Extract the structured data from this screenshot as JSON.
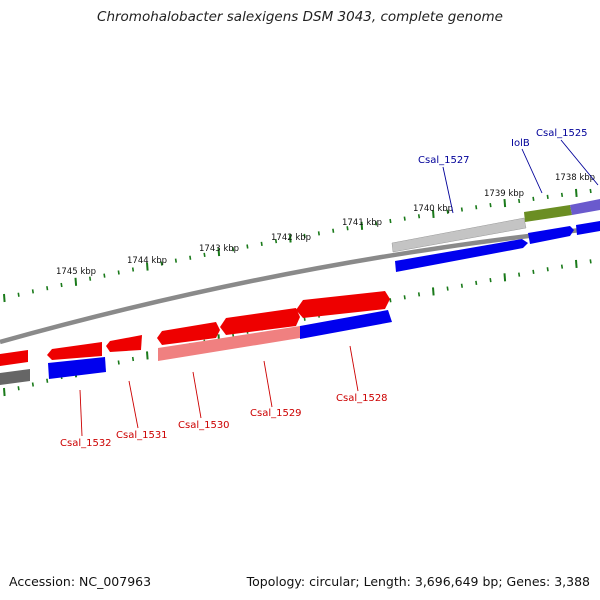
{
  "header": {
    "title": "Chromohalobacter salexigens DSM 3043, complete genome"
  },
  "footer": {
    "accession": "Accession: NC_007963",
    "topology": "Topology: circular; Length: 3,696,649 bp; Genes: 3,388"
  },
  "colors": {
    "forward_cds": "#ff0000",
    "forward_cds_light": "#f08080",
    "reverse_cds": "#0000ee",
    "highlight_green": "#6b8e23",
    "highlight_purple": "#6a5acd",
    "backbone": "#888888",
    "tick": "#1a7a1a",
    "label_red": "#cc0000",
    "label_blue": "#000099"
  },
  "scale_ticks": [
    {
      "text": "1745 kbp"
    },
    {
      "text": "1744 kbp"
    },
    {
      "text": "1743 kbp"
    },
    {
      "text": "1742 kbp"
    },
    {
      "text": "1741 kbp"
    },
    {
      "text": "1740 kbp"
    },
    {
      "text": "1739 kbp"
    },
    {
      "text": "1738 kbp"
    }
  ],
  "gene_labels": [
    {
      "text": "Csal_1532",
      "color": "red"
    },
    {
      "text": "Csal_1531",
      "color": "red"
    },
    {
      "text": "Csal_1530",
      "color": "red"
    },
    {
      "text": "Csal_1529",
      "color": "red"
    },
    {
      "text": "Csal_1528",
      "color": "red"
    },
    {
      "text": "Csal_1527",
      "color": "blue"
    },
    {
      "text": "IolB",
      "color": "blue"
    },
    {
      "text": "Csal_1525",
      "color": "blue"
    }
  ]
}
